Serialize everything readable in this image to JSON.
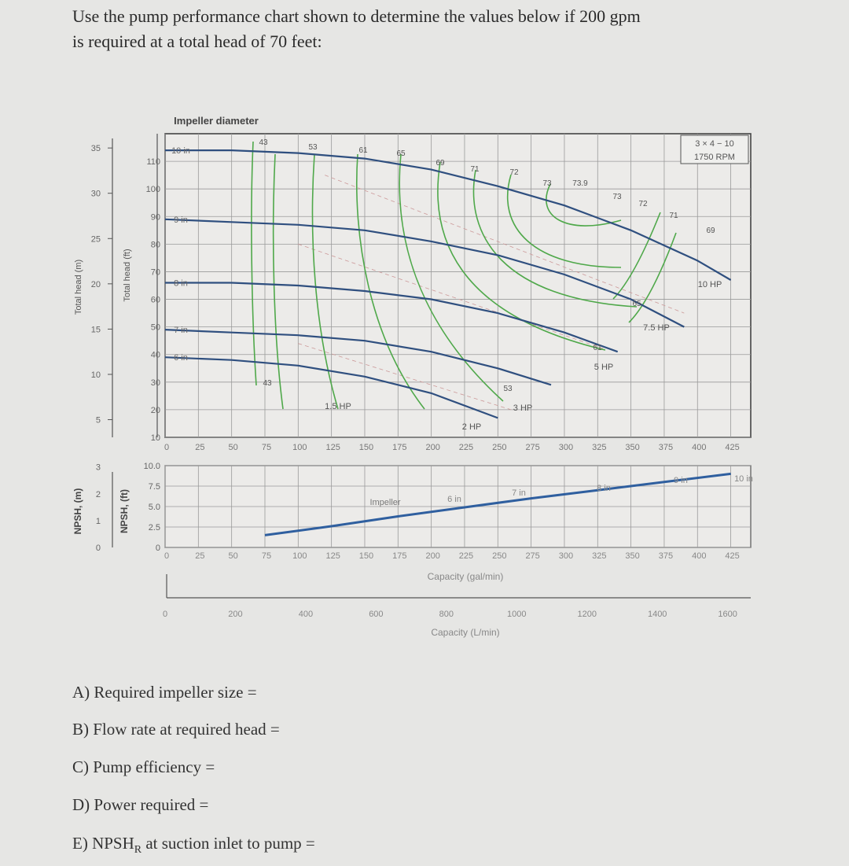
{
  "question": {
    "line1": "Use the pump performance chart shown to determine the values below if 200 gpm",
    "line2": "is required at a total head of 70 feet:"
  },
  "items": [
    {
      "label": "A) Required impeller size ="
    },
    {
      "label": "B) Flow rate at required head ="
    },
    {
      "label": "C) Pump efficiency ="
    },
    {
      "label": "D) Power required ="
    },
    {
      "label": "E) NPSH",
      "sub": "R",
      "rest": " at suction inlet to pump ="
    }
  ],
  "chart_data": [
    {
      "type": "line",
      "title": "",
      "model_label_1": "3 × 4 − 10",
      "model_label_2": "1750 RPM",
      "impeller_title": "Impeller diameter",
      "xlabel": "Capacity (gal/min)",
      "ylabel_left": "Total head (m)",
      "ylabel_right": "Total head (ft)",
      "xlim": [
        0,
        440
      ],
      "ylim": [
        10,
        120
      ],
      "x_ticks": [
        "0",
        "25",
        "50",
        "75",
        "100",
        "125",
        "150",
        "175",
        "200",
        "225",
        "250",
        "275",
        "300",
        "325",
        "350",
        "375",
        "400",
        "425"
      ],
      "y_ticks_ft": [
        "110",
        "100",
        "90",
        "80",
        "70",
        "60",
        "50",
        "40",
        "30",
        "20",
        "10"
      ],
      "y_ticks_m": [
        "35",
        "30",
        "25",
        "20",
        "15",
        "10",
        "5"
      ],
      "head_curves": [
        {
          "name": "10 in",
          "points": [
            [
              0,
              114
            ],
            [
              50,
              114
            ],
            [
              100,
              113
            ],
            [
              150,
              111
            ],
            [
              200,
              107
            ],
            [
              250,
              101
            ],
            [
              300,
              94
            ],
            [
              350,
              85
            ],
            [
              400,
              74
            ],
            [
              425,
              67
            ]
          ]
        },
        {
          "name": "9 in",
          "points": [
            [
              0,
              89
            ],
            [
              50,
              88
            ],
            [
              100,
              87
            ],
            [
              150,
              85
            ],
            [
              200,
              81
            ],
            [
              250,
              76
            ],
            [
              300,
              69
            ],
            [
              350,
              60
            ],
            [
              390,
              50
            ]
          ]
        },
        {
          "name": "8 in",
          "points": [
            [
              0,
              66
            ],
            [
              50,
              66
            ],
            [
              100,
              65
            ],
            [
              150,
              63
            ],
            [
              200,
              60
            ],
            [
              250,
              55
            ],
            [
              300,
              48
            ],
            [
              340,
              41
            ]
          ]
        },
        {
          "name": "7 in",
          "points": [
            [
              0,
              49
            ],
            [
              50,
              48
            ],
            [
              100,
              47
            ],
            [
              150,
              45
            ],
            [
              200,
              41
            ],
            [
              250,
              35
            ],
            [
              290,
              29
            ]
          ]
        },
        {
          "name": "6 in",
          "points": [
            [
              0,
              39
            ],
            [
              50,
              38
            ],
            [
              100,
              36
            ],
            [
              150,
              32
            ],
            [
              200,
              26
            ],
            [
              250,
              17
            ]
          ]
        }
      ],
      "efficiency_labels": [
        "43",
        "53",
        "61",
        "65",
        "69",
        "71",
        "72",
        "73",
        "73.9",
        "73",
        "72",
        "71",
        "69",
        "65",
        "61",
        "53",
        "43"
      ],
      "power_labels": [
        "10 HP",
        "7.5 HP",
        "5 HP",
        "3 HP",
        "2 HP",
        "1.5 HP"
      ],
      "npsh": {
        "ylabel_right": "NPSH, (ft)",
        "ylabel_left": "NPSH, (m)",
        "ylim": [
          0,
          10
        ],
        "y_ticks_ft": [
          "10.0",
          "7.5",
          "5.0",
          "2.5",
          "0"
        ],
        "y_ticks_m": [
          "3",
          "2",
          "1",
          "0"
        ],
        "curve_label_prefix": "Impeller",
        "labels": [
          "6 in",
          "7 in",
          "8 in",
          "9 in",
          "10 in"
        ],
        "points": [
          [
            75,
            1.5
          ],
          [
            125,
            2.6
          ],
          [
            175,
            3.8
          ],
          [
            225,
            4.9
          ],
          [
            275,
            6.0
          ],
          [
            325,
            7.0
          ],
          [
            375,
            8.0
          ],
          [
            425,
            9.0
          ]
        ]
      },
      "secondary_axis": {
        "xlabel": "Capacity (L/min)",
        "ticks": [
          "0",
          "200",
          "400",
          "600",
          "800",
          "1000",
          "1200",
          "1400",
          "1600"
        ]
      }
    }
  ]
}
